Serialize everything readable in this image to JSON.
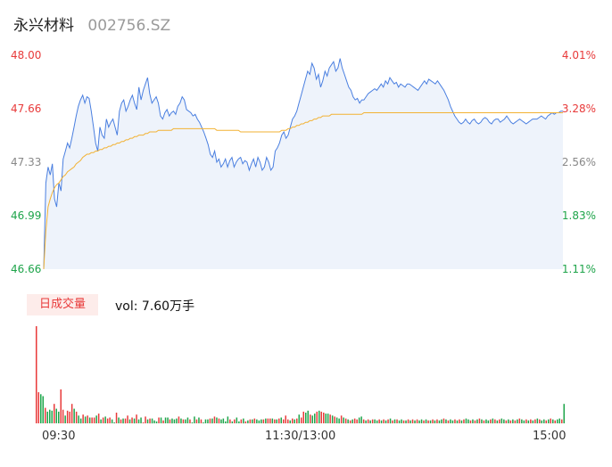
{
  "header": {
    "name": "永兴材料",
    "code": "002756.SZ"
  },
  "price_axis": {
    "labels": [
      "48.00",
      "47.66",
      "47.33",
      "46.99",
      "46.66"
    ]
  },
  "pct_axis": {
    "labels": [
      "4.01%",
      "3.28%",
      "2.56%",
      "1.83%",
      "1.11%"
    ]
  },
  "volume": {
    "badge": "日成交量",
    "label": "vol: 7.60万手"
  },
  "time_axis": {
    "labels": [
      "09:30",
      "11:30/13:00",
      "15:00"
    ]
  },
  "colors": {
    "price_line": "#4a7fe0",
    "avg_line": "#f2b233",
    "area": "#eef3fb",
    "up": "#e83a3a",
    "down": "#1ea44a"
  },
  "chart_data": [
    {
      "type": "line",
      "x_range": [
        0,
        240
      ],
      "ylim": [
        46.66,
        48.0
      ],
      "series": [
        {
          "values": [
            46.66,
            47.2,
            47.3,
            47.25,
            47.32,
            47.1,
            47.05,
            47.2,
            47.15,
            47.35,
            47.4,
            47.45,
            47.42,
            47.48,
            47.55,
            47.62,
            47.68,
            47.72,
            47.75,
            47.7,
            47.74,
            47.73,
            47.65,
            47.55,
            47.45,
            47.4,
            47.55,
            47.5,
            47.48,
            47.6,
            47.55,
            47.58,
            47.6,
            47.55,
            47.5,
            47.65,
            47.7,
            47.72,
            47.65,
            47.68,
            47.72,
            47.75,
            47.7,
            47.66,
            47.8,
            47.72,
            47.78,
            47.82,
            47.86,
            47.76,
            47.7,
            47.72,
            47.74,
            47.7,
            47.62,
            47.6,
            47.64,
            47.66,
            47.62,
            47.64,
            47.65,
            47.63,
            47.68,
            47.7,
            47.74,
            47.72,
            47.66,
            47.65,
            47.64,
            47.62,
            47.63,
            47.6,
            47.58,
            47.55,
            47.52,
            47.48,
            47.44,
            47.38,
            47.36,
            47.4,
            47.33,
            47.35,
            47.3,
            47.32,
            47.35,
            47.3,
            47.34,
            47.36,
            47.3,
            47.33,
            47.35,
            47.36,
            47.32,
            47.34,
            47.33,
            47.28,
            47.32,
            47.35,
            47.3,
            47.36,
            47.33,
            47.28,
            47.3,
            47.36,
            47.33,
            47.28,
            47.3,
            47.4,
            47.42,
            47.45,
            47.5,
            47.52,
            47.48,
            47.5,
            47.55,
            47.6,
            47.62,
            47.65,
            47.7,
            47.75,
            47.8,
            47.85,
            47.9,
            47.88,
            47.95,
            47.92,
            47.85,
            47.88,
            47.8,
            47.84,
            47.9,
            47.87,
            47.92,
            47.94,
            47.96,
            47.9,
            47.92,
            47.98,
            47.92,
            47.88,
            47.84,
            47.8,
            47.78,
            47.74,
            47.72,
            47.73,
            47.7,
            47.72,
            47.72,
            47.74,
            47.76,
            47.77,
            47.78,
            47.79,
            47.78,
            47.8,
            47.82,
            47.8,
            47.84,
            47.82,
            47.86,
            47.84,
            47.82,
            47.83,
            47.8,
            47.82,
            47.81,
            47.8,
            47.82,
            47.82,
            47.81,
            47.8,
            47.79,
            47.78,
            47.8,
            47.82,
            47.84,
            47.82,
            47.85,
            47.84,
            47.83,
            47.82,
            47.84,
            47.82,
            47.8,
            47.78,
            47.75,
            47.72,
            47.68,
            47.65,
            47.62,
            47.6,
            47.58,
            47.57,
            47.58,
            47.6,
            47.58,
            47.57,
            47.59,
            47.6,
            47.58,
            47.57,
            47.58,
            47.6,
            47.61,
            47.6,
            47.58,
            47.57,
            47.59,
            47.6,
            47.6,
            47.58,
            47.59,
            47.6,
            47.62,
            47.6,
            47.58,
            47.57,
            47.58,
            47.59,
            47.6,
            47.59,
            47.58,
            47.57,
            47.58,
            47.59,
            47.6,
            47.6,
            47.6,
            47.61,
            47.62,
            47.61,
            47.6,
            47.62,
            47.63,
            47.64,
            47.63,
            47.64,
            47.64,
            47.65,
            47.65
          ]
        },
        {
          "values": [
            46.66,
            46.9,
            47.05,
            47.1,
            47.14,
            47.17,
            47.19,
            47.2,
            47.22,
            47.24,
            47.25,
            47.27,
            47.28,
            47.29,
            47.3,
            47.32,
            47.33,
            47.34,
            47.36,
            47.37,
            47.38,
            47.38,
            47.39,
            47.39,
            47.4,
            47.4,
            47.41,
            47.41,
            47.42,
            47.42,
            47.43,
            47.43,
            47.44,
            47.44,
            47.45,
            47.45,
            47.46,
            47.46,
            47.47,
            47.47,
            47.48,
            47.48,
            47.49,
            47.49,
            47.5,
            47.5,
            47.5,
            47.51,
            47.51,
            47.52,
            47.52,
            47.52,
            47.52,
            47.53,
            47.53,
            47.53,
            47.53,
            47.53,
            47.53,
            47.53,
            47.54,
            47.54,
            47.54,
            47.54,
            47.54,
            47.54,
            47.54,
            47.54,
            47.54,
            47.54,
            47.54,
            47.54,
            47.54,
            47.54,
            47.54,
            47.54,
            47.54,
            47.54,
            47.54,
            47.54,
            47.53,
            47.53,
            47.53,
            47.53,
            47.53,
            47.53,
            47.53,
            47.53,
            47.53,
            47.53,
            47.53,
            47.52,
            47.52,
            47.52,
            47.52,
            47.52,
            47.52,
            47.52,
            47.52,
            47.52,
            47.52,
            47.52,
            47.52,
            47.52,
            47.52,
            47.52,
            47.52,
            47.52,
            47.52,
            47.52,
            47.53,
            47.53,
            47.53,
            47.54,
            47.54,
            47.55,
            47.55,
            47.56,
            47.56,
            47.57,
            47.57,
            47.58,
            47.58,
            47.59,
            47.59,
            47.6,
            47.6,
            47.61,
            47.61,
            47.62,
            47.62,
            47.62,
            47.62,
            47.63,
            47.63,
            47.63,
            47.63,
            47.63,
            47.63,
            47.63,
            47.63,
            47.63,
            47.63,
            47.63,
            47.63,
            47.63,
            47.63,
            47.63,
            47.64,
            47.64,
            47.64,
            47.64,
            47.64,
            47.64,
            47.64,
            47.64,
            47.64,
            47.64,
            47.64,
            47.64,
            47.64,
            47.64,
            47.64,
            47.64,
            47.64,
            47.64,
            47.64,
            47.64,
            47.64,
            47.64,
            47.64,
            47.64,
            47.64,
            47.64,
            47.64,
            47.64,
            47.64,
            47.64,
            47.64,
            47.64,
            47.64,
            47.64,
            47.64,
            47.64,
            47.64,
            47.64,
            47.64,
            47.64,
            47.64,
            47.64,
            47.64,
            47.64,
            47.64,
            47.64,
            47.64,
            47.64,
            47.64,
            47.64,
            47.64,
            47.64,
            47.64,
            47.64,
            47.64,
            47.64,
            47.64,
            47.64,
            47.64,
            47.64,
            47.64,
            47.64,
            47.64,
            47.64,
            47.64,
            47.64,
            47.64,
            47.64,
            47.64,
            47.64,
            47.64,
            47.64,
            47.64,
            47.64,
            47.64,
            47.64,
            47.64,
            47.64,
            47.64,
            47.64,
            47.64,
            47.64,
            47.64,
            47.64,
            47.64,
            47.64,
            47.64,
            47.64,
            47.64,
            47.64,
            47.64,
            47.64,
            47.64
          ]
        }
      ]
    },
    {
      "type": "bar",
      "values": [
        100,
        32,
        30,
        28,
        16,
        12,
        14,
        13,
        20,
        15,
        12,
        35,
        14,
        8,
        13,
        12,
        20,
        15,
        12,
        8,
        5,
        9,
        7,
        8,
        6,
        6,
        6,
        8,
        10,
        4,
        6,
        7,
        5,
        6,
        4,
        1,
        11,
        6,
        4,
        5,
        5,
        8,
        4,
        6,
        5,
        9,
        4,
        6,
        1,
        7,
        4,
        5,
        5,
        3,
        2,
        6,
        6,
        3,
        6,
        6,
        4,
        5,
        4,
        5,
        7,
        5,
        4,
        4,
        6,
        4,
        1,
        7,
        4,
        6,
        4,
        1,
        4,
        4,
        5,
        5,
        7,
        6,
        5,
        4,
        5,
        2,
        7,
        4,
        2,
        4,
        6,
        2,
        4,
        5,
        2,
        3,
        4,
        4,
        5,
        4,
        3,
        4,
        4,
        5,
        5,
        5,
        5,
        4,
        4,
        5,
        6,
        4,
        8,
        4,
        3,
        5,
        4,
        5,
        9,
        6,
        12,
        11,
        13,
        9,
        8,
        10,
        12,
        13,
        12,
        11,
        10,
        10,
        9,
        8,
        7,
        6,
        5,
        8,
        6,
        5,
        4,
        3,
        4,
        5,
        4,
        6,
        7,
        4,
        3,
        4,
        3,
        4,
        4,
        3,
        4,
        3,
        4,
        3,
        4,
        5,
        3,
        4,
        4,
        3,
        4,
        3,
        3,
        4,
        3,
        4,
        3,
        4,
        3,
        4,
        3,
        4,
        3,
        3,
        4,
        3,
        4,
        3,
        4,
        5,
        4,
        3,
        4,
        3,
        4,
        3,
        4,
        3,
        4,
        5,
        4,
        3,
        4,
        3,
        4,
        5,
        4,
        3,
        4,
        3,
        4,
        5,
        4,
        3,
        4,
        5,
        4,
        3,
        4,
        3,
        4,
        3,
        4,
        5,
        4,
        3,
        4,
        3,
        4,
        3,
        4,
        5,
        4,
        3,
        4,
        3,
        4,
        5,
        4,
        3,
        4,
        5,
        4,
        20
      ],
      "up": [
        1,
        1,
        0,
        0,
        1,
        0,
        0,
        0,
        1,
        0,
        0,
        1,
        1,
        0,
        1,
        1,
        1,
        0,
        1,
        0,
        0,
        1,
        0,
        1,
        0,
        1,
        1,
        0,
        1,
        0,
        1,
        0,
        1,
        1,
        0,
        0,
        1,
        0,
        1,
        0,
        1,
        1,
        0,
        1,
        0,
        1,
        0,
        0,
        1,
        1,
        0,
        1,
        0,
        0,
        0,
        1,
        0,
        1,
        0,
        0,
        1,
        0,
        0,
        0,
        1,
        0,
        1,
        0,
        0,
        1,
        0,
        0,
        1,
        0,
        1,
        0,
        0,
        0,
        1,
        0,
        1,
        0,
        1,
        0,
        0,
        0,
        0,
        1,
        0,
        1,
        0,
        0,
        1,
        0,
        1,
        0,
        1,
        0,
        1,
        0,
        0,
        0,
        1,
        0,
        1,
        1,
        0,
        1,
        0,
        1,
        0,
        1,
        1,
        1,
        0,
        1,
        0,
        1,
        0,
        1,
        1,
        0,
        0,
        1,
        0,
        0,
        1,
        0,
        1,
        1,
        0,
        0,
        1,
        0,
        1,
        0,
        0,
        1,
        0,
        1,
        0,
        1,
        0,
        1,
        1,
        0,
        0,
        1,
        0,
        1,
        0,
        1,
        0,
        0,
        1,
        0,
        1,
        0,
        1,
        0,
        1,
        0,
        1,
        0,
        0,
        1,
        0,
        1,
        0,
        1,
        0,
        1,
        0,
        0,
        1,
        0,
        1,
        0,
        1,
        0,
        1,
        0,
        0,
        1,
        0,
        1,
        0,
        0,
        1,
        0,
        1,
        0,
        1,
        0,
        0,
        1,
        0,
        1,
        0,
        1,
        0,
        1,
        0,
        0,
        1,
        0,
        1,
        0,
        1,
        0,
        0,
        1,
        0,
        1,
        0,
        1,
        0,
        1,
        0,
        0,
        1,
        0,
        1,
        0,
        1,
        0,
        1,
        0,
        0,
        1,
        0,
        1,
        0,
        1,
        0,
        0,
        1,
        0,
        1,
        1
      ]
    }
  ]
}
